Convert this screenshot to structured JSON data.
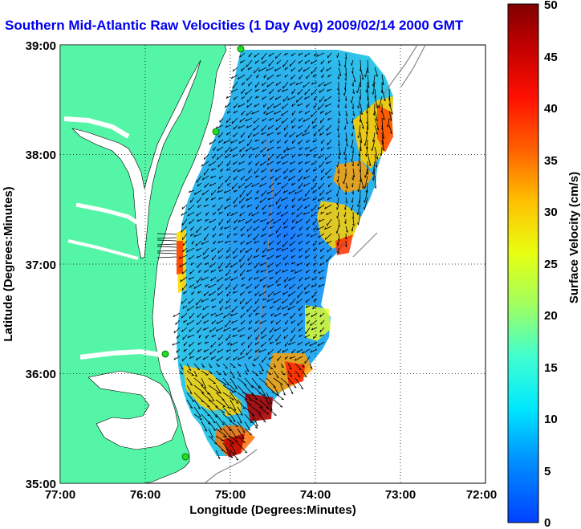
{
  "title": "Southern Mid-Atlantic Raw Velocities (1 Day Avg) 2009/02/14 2000 GMT",
  "x_axis": {
    "label": "Longitude (Degrees:Minutes)",
    "ticks": [
      "77:00",
      "76:00",
      "75:00",
      "74:00",
      "73:00",
      "72:00"
    ]
  },
  "y_axis": {
    "label": "Latitude (Degrees:Minutes)",
    "ticks": [
      "39:00",
      "38:00",
      "37:00",
      "36:00",
      "35:00"
    ]
  },
  "colorbar": {
    "label": "Surface Velocity (cm/s)",
    "ticks": [
      "50",
      "45",
      "40",
      "35",
      "30",
      "25",
      "20",
      "15",
      "10",
      "5",
      "0"
    ],
    "min": 0,
    "max": 50
  },
  "colors": {
    "land": "#55f5a8",
    "title": "#0000ee",
    "stations": "#22dd22"
  },
  "grid": "dotted"
}
